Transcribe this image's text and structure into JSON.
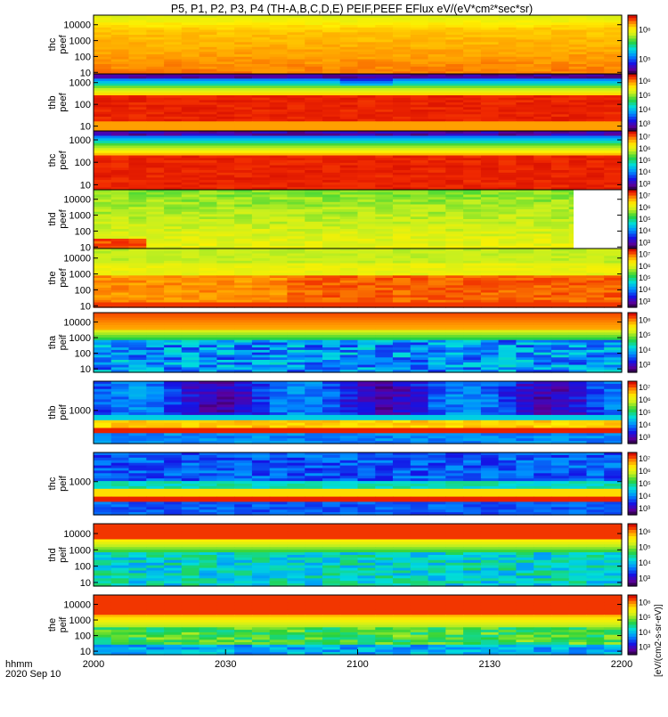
{
  "title": "P5, P1, P2, P3, P4 (TH-A,B,C,D,E) PEIF,PEEF EFlux eV/(eV*cm²*sec*sr)",
  "time_axis": {
    "label_line1": "hhmm",
    "label_line2": "2020 Sep 10",
    "ticks": [
      "2000",
      "2030",
      "2100",
      "2130",
      "2200"
    ]
  },
  "colorbar_title": "[eV/(cm2-s-sr-eV)]",
  "chart_data": {
    "type": "heatmap",
    "x_range_hhmm": [
      "2000",
      "2200"
    ],
    "panels": [
      {
        "label1": "thc",
        "label2": "peef",
        "ylim": [
          8,
          40000
        ],
        "yticks": [
          "10",
          "100",
          "1000",
          "10000"
        ],
        "cbar": [
          "10⁵",
          "10⁶"
        ],
        "style": "thc_peef"
      },
      {
        "label1": "thb",
        "label2": "peef",
        "ylim": [
          6,
          2500
        ],
        "yticks": [
          "10",
          "100",
          "1000"
        ],
        "cbar": [
          "10³",
          "10⁴",
          "10⁵",
          "10⁶"
        ],
        "style": "thb_peef"
      },
      {
        "label1": "thc",
        "label2": "peef",
        "ylim": [
          6,
          2500
        ],
        "yticks": [
          "10",
          "100",
          "1000"
        ],
        "cbar": [
          "10³",
          "10⁴",
          "10⁵",
          "10⁶",
          "10⁷"
        ],
        "style": "thc_peef2"
      },
      {
        "label1": "thd",
        "label2": "peef",
        "ylim": [
          8,
          40000
        ],
        "yticks": [
          "10",
          "100",
          "1000",
          "10000"
        ],
        "cbar": [
          "10³",
          "10⁴",
          "10⁵",
          "10⁶",
          "10⁷"
        ],
        "style": "thd_peef"
      },
      {
        "label1": "the",
        "label2": "peef",
        "ylim": [
          8,
          40000
        ],
        "yticks": [
          "10",
          "100",
          "1000",
          "10000"
        ],
        "cbar": [
          "10³",
          "10⁴",
          "10⁵",
          "10⁶",
          "10⁷"
        ],
        "style": "the_peef"
      },
      {
        "label1": "tha",
        "label2": "peif",
        "ylim": [
          6,
          40000
        ],
        "yticks": [
          "10",
          "100",
          "1000",
          "10000"
        ],
        "cbar": [
          "10³",
          "10⁴",
          "10⁵",
          "10⁶"
        ],
        "style": "tha_peif"
      },
      {
        "label1": "thb",
        "label2": "peif",
        "ylim": [
          15,
          40000
        ],
        "yticks": [
          "1000"
        ],
        "cbar": [
          "10³",
          "10⁴",
          "10⁵",
          "10⁶",
          "10⁷"
        ],
        "style": "thb_peif"
      },
      {
        "label1": "thc",
        "label2": "peif",
        "ylim": [
          15,
          40000
        ],
        "yticks": [
          "1000"
        ],
        "cbar": [
          "10³",
          "10⁴",
          "10⁵",
          "10⁶",
          "10⁷"
        ],
        "style": "thc_peif"
      },
      {
        "label1": "thd",
        "label2": "peif",
        "ylim": [
          6,
          40000
        ],
        "yticks": [
          "10",
          "100",
          "1000",
          "10000"
        ],
        "cbar": [
          "10³",
          "10⁴",
          "10⁵",
          "10⁶"
        ],
        "style": "thd_peif"
      },
      {
        "label1": "the",
        "label2": "peif",
        "ylim": [
          6,
          40000
        ],
        "yticks": [
          "10",
          "100",
          "1000",
          "10000"
        ],
        "cbar": [
          "10³",
          "10⁴",
          "10⁵",
          "10⁶"
        ],
        "style": "the_peif"
      }
    ]
  }
}
